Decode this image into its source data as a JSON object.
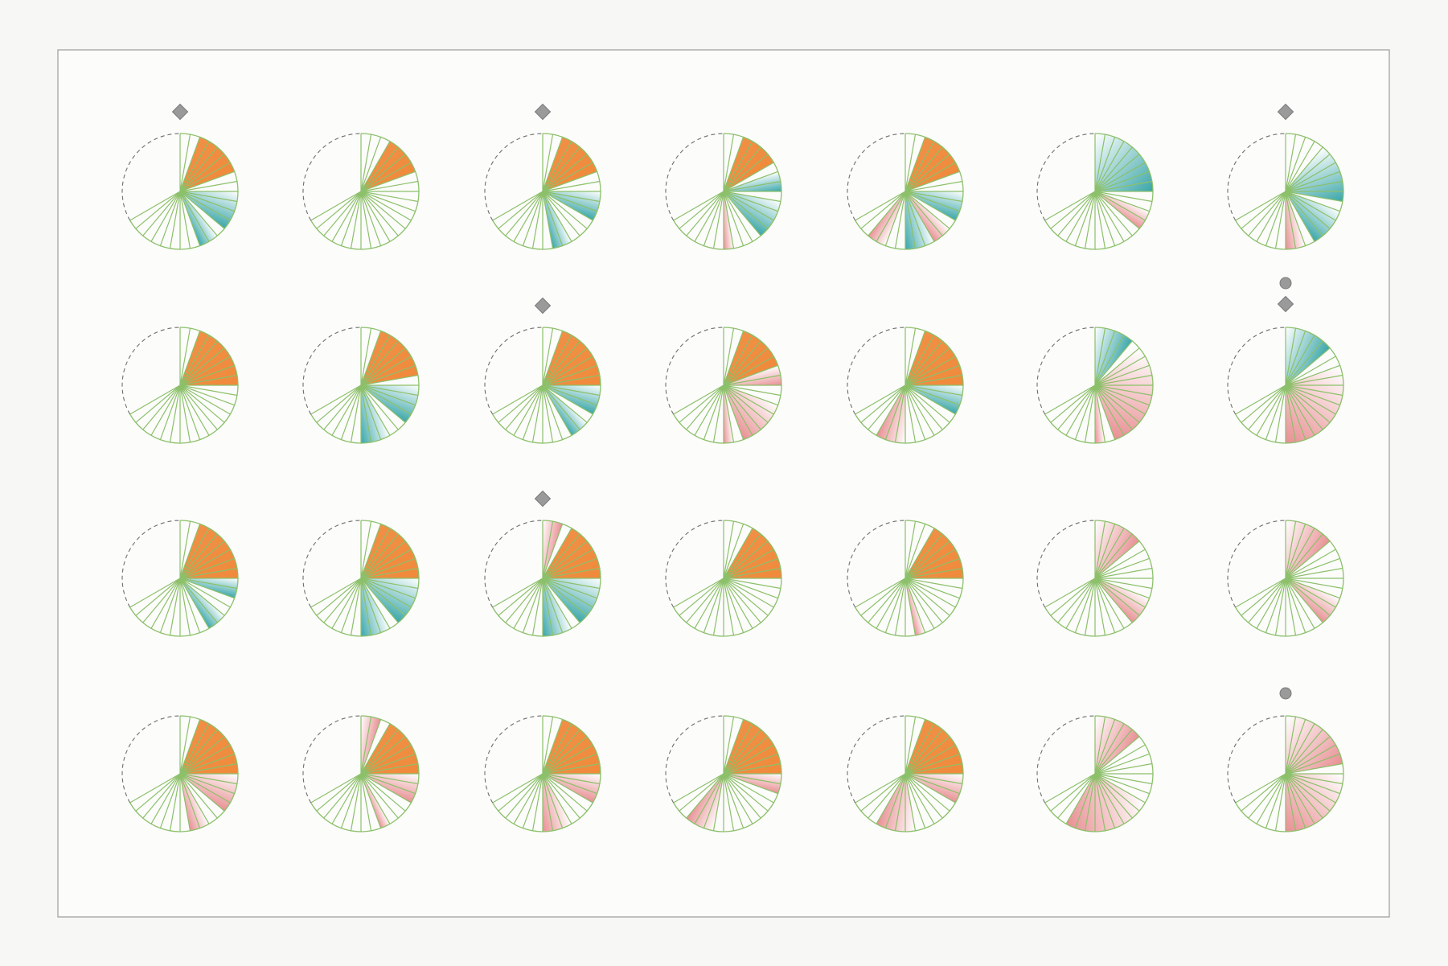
{
  "colors": {
    "background": "#f7f7f6",
    "panel_fill": "#fcfcfb",
    "panel_border": "#a8a8a8",
    "slice_stroke": "#8cc06a",
    "missing_arc": "#6e6e6e",
    "marker": "#9a9a9a",
    "orange": "#f08a3c",
    "teal": "#3aa6a8",
    "pink": "#e88f93"
  },
  "pattern": {
    "arc_start_deg": 0,
    "arc_end_deg": 240,
    "segment_count": 24,
    "segment_step_deg": 10
  },
  "grid": {
    "rows": 4,
    "cols": 7
  },
  "glyphs": [
    {
      "row": 0,
      "col": 0,
      "marker": "diamond",
      "fills": [
        {
          "color": "orange",
          "from": 2,
          "to": 7
        },
        {
          "color": "teal",
          "from": 9,
          "to": 13
        },
        {
          "color": "teal",
          "from": 14,
          "to": 16
        }
      ]
    },
    {
      "row": 0,
      "col": 1,
      "marker": null,
      "fills": [
        {
          "color": "orange",
          "from": 3,
          "to": 7
        }
      ]
    },
    {
      "row": 0,
      "col": 2,
      "marker": "diamond",
      "fills": [
        {
          "color": "orange",
          "from": 2,
          "to": 7
        },
        {
          "color": "teal",
          "from": 9,
          "to": 12
        },
        {
          "color": "teal",
          "from": 15,
          "to": 17
        }
      ]
    },
    {
      "row": 0,
      "col": 3,
      "marker": null,
      "fills": [
        {
          "color": "orange",
          "from": 2,
          "to": 6
        },
        {
          "color": "teal",
          "from": 7,
          "to": 9
        },
        {
          "color": "teal",
          "from": 10,
          "to": 14
        },
        {
          "color": "pink",
          "from": 17,
          "to": 18
        }
      ]
    },
    {
      "row": 0,
      "col": 4,
      "marker": null,
      "fills": [
        {
          "color": "orange",
          "from": 2,
          "to": 7
        },
        {
          "color": "teal",
          "from": 9,
          "to": 12
        },
        {
          "color": "pink",
          "from": 13,
          "to": 15
        },
        {
          "color": "teal",
          "from": 15,
          "to": 18
        },
        {
          "color": "pink",
          "from": 20,
          "to": 22
        }
      ]
    },
    {
      "row": 0,
      "col": 5,
      "marker": null,
      "fills": [
        {
          "color": "teal",
          "from": 0,
          "to": 9
        },
        {
          "color": "pink",
          "from": 11,
          "to": 13
        }
      ]
    },
    {
      "row": 0,
      "col": 6,
      "marker": "diamond",
      "fills": [
        {
          "color": "teal",
          "from": 4,
          "to": 10
        },
        {
          "color": "teal",
          "from": 11,
          "to": 15
        },
        {
          "color": "pink",
          "from": 16,
          "to": 18
        }
      ]
    },
    {
      "row": 1,
      "col": 0,
      "marker": null,
      "fills": [
        {
          "color": "orange",
          "from": 2,
          "to": 9
        }
      ]
    },
    {
      "row": 1,
      "col": 1,
      "marker": null,
      "fills": [
        {
          "color": "orange",
          "from": 2,
          "to": 8
        },
        {
          "color": "teal",
          "from": 9,
          "to": 13
        },
        {
          "color": "teal",
          "from": 15,
          "to": 18
        }
      ]
    },
    {
      "row": 1,
      "col": 2,
      "marker": "diamond",
      "fills": [
        {
          "color": "orange",
          "from": 2,
          "to": 9
        },
        {
          "color": "teal",
          "from": 9,
          "to": 12
        },
        {
          "color": "teal",
          "from": 13,
          "to": 15
        }
      ]
    },
    {
      "row": 1,
      "col": 3,
      "marker": null,
      "fills": [
        {
          "color": "orange",
          "from": 2,
          "to": 7
        },
        {
          "color": "pink",
          "from": 7,
          "to": 9
        },
        {
          "color": "pink",
          "from": 11,
          "to": 16
        },
        {
          "color": "pink",
          "from": 17,
          "to": 18
        }
      ]
    },
    {
      "row": 1,
      "col": 4,
      "marker": null,
      "fills": [
        {
          "color": "orange",
          "from": 2,
          "to": 9
        },
        {
          "color": "teal",
          "from": 9,
          "to": 12
        },
        {
          "color": "pink",
          "from": 18,
          "to": 21
        }
      ]
    },
    {
      "row": 1,
      "col": 5,
      "marker": null,
      "fills": [
        {
          "color": "teal",
          "from": 0,
          "to": 4
        },
        {
          "color": "pink",
          "from": 5,
          "to": 16
        },
        {
          "color": "pink",
          "from": 17,
          "to": 18
        }
      ]
    },
    {
      "row": 1,
      "col": 6,
      "marker": "circle-diamond",
      "fills": [
        {
          "color": "teal",
          "from": 0,
          "to": 5
        },
        {
          "color": "pink",
          "from": 7,
          "to": 18
        }
      ]
    },
    {
      "row": 2,
      "col": 0,
      "marker": null,
      "fills": [
        {
          "color": "orange",
          "from": 2,
          "to": 9
        },
        {
          "color": "teal",
          "from": 9,
          "to": 11
        },
        {
          "color": "teal",
          "from": 13,
          "to": 15
        }
      ]
    },
    {
      "row": 2,
      "col": 1,
      "marker": null,
      "fills": [
        {
          "color": "orange",
          "from": 2,
          "to": 9
        },
        {
          "color": "teal",
          "from": 9,
          "to": 14
        },
        {
          "color": "teal",
          "from": 15,
          "to": 18
        }
      ]
    },
    {
      "row": 2,
      "col": 2,
      "marker": "diamond",
      "fills": [
        {
          "color": "pink",
          "from": 0,
          "to": 2
        },
        {
          "color": "orange",
          "from": 3,
          "to": 9
        },
        {
          "color": "teal",
          "from": 9,
          "to": 14
        },
        {
          "color": "teal",
          "from": 15,
          "to": 18
        }
      ]
    },
    {
      "row": 2,
      "col": 3,
      "marker": null,
      "fills": [
        {
          "color": "orange",
          "from": 3,
          "to": 9
        }
      ]
    },
    {
      "row": 2,
      "col": 4,
      "marker": null,
      "fills": [
        {
          "color": "orange",
          "from": 3,
          "to": 9
        },
        {
          "color": "pink",
          "from": 16,
          "to": 17
        }
      ]
    },
    {
      "row": 2,
      "col": 5,
      "marker": null,
      "fills": [
        {
          "color": "pink",
          "from": 0,
          "to": 5
        },
        {
          "color": "pink",
          "from": 11,
          "to": 14
        }
      ]
    },
    {
      "row": 2,
      "col": 6,
      "marker": null,
      "fills": [
        {
          "color": "pink",
          "from": 0,
          "to": 5
        },
        {
          "color": "pink",
          "from": 11,
          "to": 14
        }
      ]
    },
    {
      "row": 3,
      "col": 0,
      "marker": null,
      "fills": [
        {
          "color": "orange",
          "from": 2,
          "to": 9
        },
        {
          "color": "pink",
          "from": 9,
          "to": 13
        },
        {
          "color": "pink",
          "from": 15,
          "to": 17
        }
      ]
    },
    {
      "row": 3,
      "col": 1,
      "marker": null,
      "fills": [
        {
          "color": "pink",
          "from": 0,
          "to": 2
        },
        {
          "color": "orange",
          "from": 3,
          "to": 9
        },
        {
          "color": "pink",
          "from": 9,
          "to": 12
        },
        {
          "color": "pink",
          "from": 15,
          "to": 16
        }
      ]
    },
    {
      "row": 3,
      "col": 2,
      "marker": null,
      "fills": [
        {
          "color": "orange",
          "from": 2,
          "to": 9
        },
        {
          "color": "pink",
          "from": 9,
          "to": 12
        },
        {
          "color": "pink",
          "from": 15,
          "to": 18
        }
      ]
    },
    {
      "row": 3,
      "col": 3,
      "marker": null,
      "fills": [
        {
          "color": "orange",
          "from": 2,
          "to": 9
        },
        {
          "color": "pink",
          "from": 9,
          "to": 11
        },
        {
          "color": "pink",
          "from": 19,
          "to": 22
        }
      ]
    },
    {
      "row": 3,
      "col": 4,
      "marker": null,
      "fills": [
        {
          "color": "orange",
          "from": 2,
          "to": 9
        },
        {
          "color": "pink",
          "from": 9,
          "to": 12
        },
        {
          "color": "pink",
          "from": 17,
          "to": 21
        }
      ]
    },
    {
      "row": 3,
      "col": 5,
      "marker": null,
      "fills": [
        {
          "color": "pink",
          "from": 0,
          "to": 5
        },
        {
          "color": "pink",
          "from": 12,
          "to": 21
        }
      ]
    },
    {
      "row": 3,
      "col": 6,
      "marker": "circle",
      "fills": [
        {
          "color": "pink",
          "from": 0,
          "to": 8
        },
        {
          "color": "pink",
          "from": 9,
          "to": 18
        }
      ]
    }
  ]
}
